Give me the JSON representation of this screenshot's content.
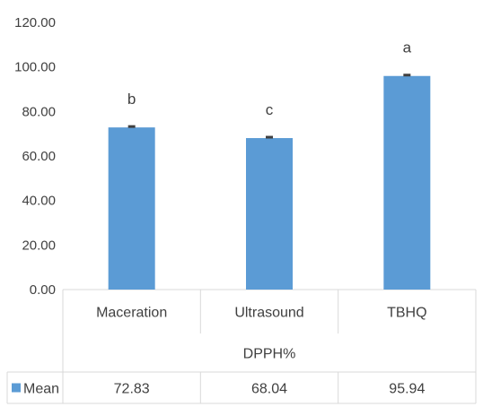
{
  "chart_data": {
    "type": "bar",
    "title": "",
    "xlabel": "",
    "ylabel": "",
    "ylim": [
      0,
      120
    ],
    "yticks": [
      "0.00",
      "20.00",
      "40.00",
      "60.00",
      "80.00",
      "100.00",
      "120.00"
    ],
    "group_label": "DPPH%",
    "categories": [
      "Maceration",
      "Ultrasound",
      "TBHQ"
    ],
    "series": [
      {
        "name": "Mean",
        "color": "#5b9bd5",
        "values": [
          72.83,
          68.04,
          95.94
        ],
        "value_labels": [
          "72.83",
          "68.04",
          "95.94"
        ],
        "significance_letters": [
          "b",
          "c",
          "a"
        ]
      }
    ],
    "grid": false,
    "legend": "data-table",
    "data_table": true
  }
}
